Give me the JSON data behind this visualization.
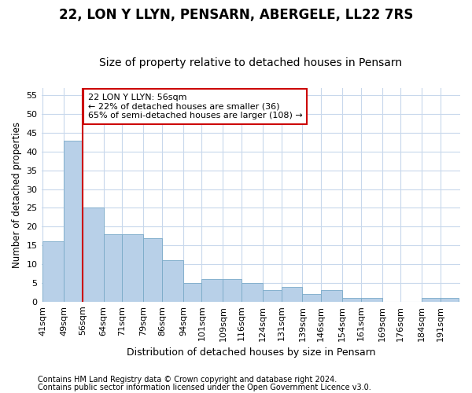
{
  "title1": "22, LON Y LLYN, PENSARN, ABERGELE, LL22 7RS",
  "title2": "Size of property relative to detached houses in Pensarn",
  "xlabel": "Distribution of detached houses by size in Pensarn",
  "ylabel": "Number of detached properties",
  "bins": [
    41,
    49,
    56,
    64,
    71,
    79,
    86,
    94,
    101,
    109,
    116,
    124,
    131,
    139,
    146,
    154,
    161,
    169,
    176,
    184,
    191
  ],
  "values": [
    16,
    43,
    25,
    18,
    18,
    17,
    11,
    5,
    6,
    6,
    5,
    3,
    4,
    2,
    3,
    1,
    1,
    0,
    0,
    1,
    1
  ],
  "bar_color": "#b8d0e8",
  "bar_edge_color": "#7aaac8",
  "property_line_x": 56,
  "property_line_color": "#cc0000",
  "annotation_text": "22 LON Y LLYN: 56sqm\n← 22% of detached houses are smaller (36)\n65% of semi-detached houses are larger (108) →",
  "annotation_box_facecolor": "#ffffff",
  "annotation_box_edgecolor": "#cc0000",
  "ylim": [
    0,
    57
  ],
  "yticks": [
    0,
    5,
    10,
    15,
    20,
    25,
    30,
    35,
    40,
    45,
    50,
    55
  ],
  "footer1": "Contains HM Land Registry data © Crown copyright and database right 2024.",
  "footer2": "Contains public sector information licensed under the Open Government Licence v3.0.",
  "bg_color": "#ffffff",
  "grid_color": "#c8d8ec",
  "title1_fontsize": 12,
  "title2_fontsize": 10,
  "tick_fontsize": 8,
  "ylabel_fontsize": 8.5,
  "xlabel_fontsize": 9,
  "footer_fontsize": 7,
  "annot_fontsize": 8
}
